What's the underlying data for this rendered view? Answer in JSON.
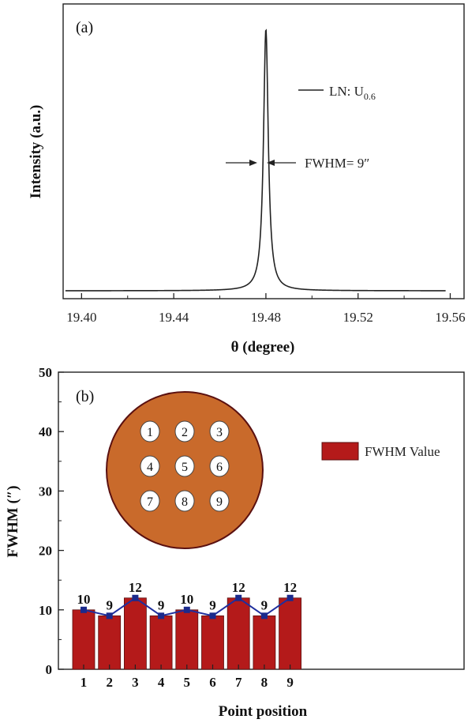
{
  "chart_data": [
    {
      "type": "line",
      "panel_label": "(a)",
      "xlabel": "θ (degree)",
      "ylabel": "Intensity (a.u.)",
      "xlim": [
        19.392,
        19.566
      ],
      "x_ticks": [
        "19.40",
        "19.44",
        "19.48",
        "19.52",
        "19.56"
      ],
      "y_ticks_labeled": false,
      "series": [
        {
          "name": "LN: U",
          "subscript": "0.6",
          "peak_center": 19.48,
          "fwhm_deg": 0.0025,
          "x_start": 19.393,
          "x_end": 19.558
        }
      ],
      "annotation": "FWHM= 9″"
    },
    {
      "type": "bar",
      "panel_label": "(b)",
      "xlabel": "Point position",
      "ylabel": "FWHM (″)",
      "ylim": [
        0,
        50
      ],
      "y_ticks": [
        "0",
        "10",
        "20",
        "30",
        "40",
        "50"
      ],
      "categories": [
        "1",
        "2",
        "3",
        "4",
        "5",
        "6",
        "7",
        "8",
        "9"
      ],
      "series": [
        {
          "name": "FWHM Value",
          "values": [
            10,
            9,
            12,
            9,
            10,
            9,
            12,
            9,
            12
          ]
        }
      ],
      "bar_color": "#b41a1a",
      "line_color": "#1f2f9e",
      "marker_color": "#1b2a8c",
      "wafer_fill": "#c96a2b",
      "wafer_stroke": "#5a1010",
      "wafer_points": [
        "1",
        "2",
        "3",
        "4",
        "5",
        "6",
        "7",
        "8",
        "9"
      ]
    }
  ]
}
